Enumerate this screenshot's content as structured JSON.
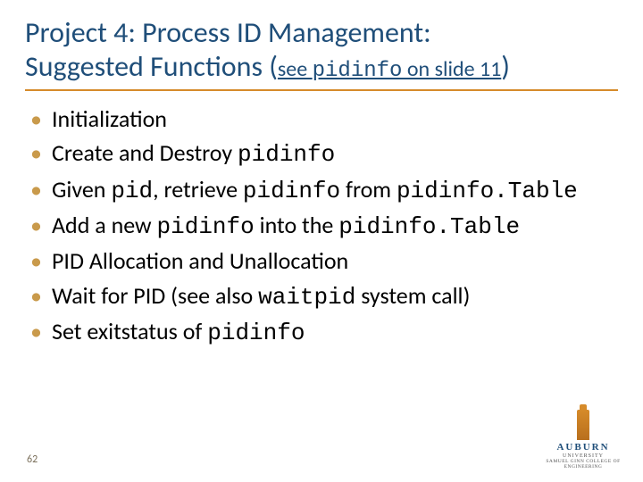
{
  "colors": {
    "title": "#1f4e79",
    "rule": "#d68b2a",
    "bullet": "#c99a4b",
    "body": "#000000",
    "background": "#ffffff",
    "logo_word": "#1f4e79",
    "logo_tower": "#d68b2a"
  },
  "fonts": {
    "title_size_pt": 32,
    "subtitle_size_pt": 24,
    "body_size_pt": 26,
    "mono_family": "Courier New"
  },
  "title": {
    "line1": "Project 4: Process ID Management:",
    "line2_prefix": "Suggested Functions ",
    "paren_open": "(",
    "sub_pre": "see ",
    "sub_code": "pidinfo",
    "sub_post": " on slide 11",
    "paren_close": ")"
  },
  "bullets": [
    {
      "plain": "Initialization"
    },
    {
      "pre": "Create and Destroy ",
      "c1": "pidinfo"
    },
    {
      "pre": "Given ",
      "c1": "pid",
      "mid": ", retrieve ",
      "c2": "pidinfo",
      "mid2": " from ",
      "c3": "pidinfo.Table"
    },
    {
      "pre": "Add a new ",
      "c1": "pidinfo",
      "mid": " into the ",
      "c2": "pidinfo.Table"
    },
    {
      "plain": "PID Allocation and Unallocation"
    },
    {
      "pre": "Wait for PID (see also ",
      "c1": "waitpid",
      "post": " system call)"
    },
    {
      "pre": "Set exitstatus of ",
      "c1": "pidinfo"
    }
  ],
  "page_number": "62",
  "logo": {
    "word": "AUBURN",
    "sub1": "UNIVERSITY",
    "sub2": "SAMUEL GINN COLLEGE OF ENGINEERING"
  }
}
